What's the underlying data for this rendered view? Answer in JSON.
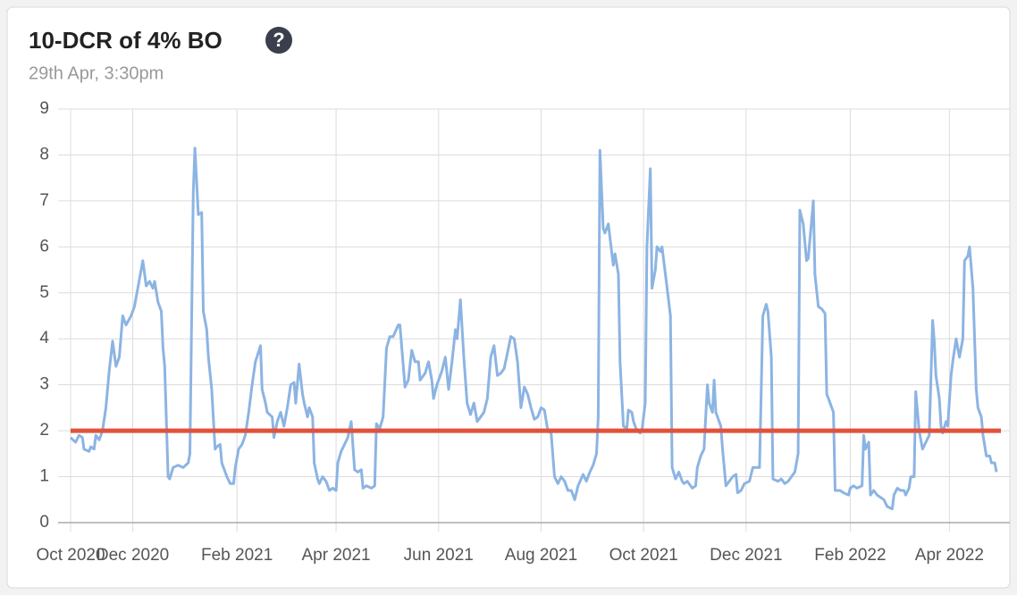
{
  "chart_data": {
    "type": "line",
    "title": "10-DCR of 4% BO",
    "help_icon": "?",
    "subtitle": "29th Apr, 3:30pm",
    "color": "#8cb4e3",
    "reference_line": {
      "value": 2,
      "color": "#e0523a"
    },
    "xlim": [
      24,
      575
    ],
    "xticks": [
      {
        "value": 24,
        "label": "Oct 2020"
      },
      {
        "value": 61,
        "label": "Dec 2020"
      },
      {
        "value": 123,
        "label": "Feb 2021"
      },
      {
        "value": 182,
        "label": "Apr 2021"
      },
      {
        "value": 243,
        "label": "Jun 2021"
      },
      {
        "value": 304,
        "label": "Aug 2021"
      },
      {
        "value": 365,
        "label": "Oct 2021"
      },
      {
        "value": 426,
        "label": "Dec 2021"
      },
      {
        "value": 488,
        "label": "Feb 2022"
      },
      {
        "value": 547,
        "label": "Apr 2022"
      }
    ],
    "ylim": [
      0,
      9
    ],
    "yticks": [
      0,
      1,
      2,
      3,
      4,
      5,
      6,
      7,
      8,
      9
    ],
    "grid": true,
    "x": [
      24,
      27,
      29,
      31,
      32,
      35,
      36,
      38,
      39,
      41,
      43,
      45,
      47,
      49,
      51,
      53,
      55,
      57,
      60,
      62,
      64,
      67,
      69,
      71,
      73,
      74,
      76,
      78,
      79,
      80,
      82,
      83,
      85,
      88,
      91,
      94,
      95,
      97,
      98,
      100,
      102,
      103,
      105,
      106,
      108,
      110,
      111,
      113,
      114,
      117,
      119,
      121,
      122,
      124,
      126,
      128,
      130,
      132,
      134,
      137,
      138,
      140,
      141,
      144,
      145,
      147,
      149,
      151,
      153,
      155,
      157,
      158,
      160,
      162,
      163,
      165,
      166,
      168,
      169,
      171,
      172,
      174,
      176,
      178,
      180,
      182,
      183,
      185,
      187,
      189,
      191,
      193,
      195,
      197,
      198,
      200,
      203,
      205,
      206,
      208,
      210,
      212,
      214,
      216,
      219,
      220,
      222,
      223,
      225,
      227,
      229,
      231,
      232,
      235,
      237,
      239,
      240,
      242,
      245,
      247,
      249,
      251,
      253,
      254,
      256,
      258,
      260,
      262,
      264,
      266,
      268,
      270,
      272,
      274,
      276,
      278,
      280,
      282,
      284,
      286,
      288,
      290,
      292,
      294,
      296,
      298,
      300,
      302,
      304,
      306,
      308,
      310,
      312,
      314,
      316,
      318,
      320,
      322,
      324,
      326,
      329,
      331,
      333,
      335,
      337,
      338,
      339,
      341,
      342,
      344,
      346,
      347,
      348,
      350,
      351,
      353,
      355,
      356,
      358,
      359,
      361,
      363,
      364,
      366,
      367,
      369,
      370,
      372,
      373,
      375,
      376,
      378,
      379,
      381,
      382,
      384,
      386,
      388,
      389,
      391,
      394,
      396,
      397,
      399,
      401,
      403,
      404,
      406,
      407,
      408,
      411,
      412,
      414,
      416,
      418,
      420,
      421,
      423,
      425,
      428,
      430,
      432,
      434,
      436,
      438,
      439,
      441,
      442,
      445,
      447,
      449,
      451,
      453,
      455,
      457,
      458,
      460,
      462,
      463,
      466,
      467,
      469,
      471,
      473,
      474,
      476,
      478,
      479,
      481,
      482,
      484,
      487,
      488,
      490,
      492,
      495,
      496,
      497,
      499,
      500,
      502,
      504,
      506,
      508,
      510,
      513,
      514,
      516,
      518,
      520,
      521,
      523,
      524,
      526,
      527,
      529,
      531,
      533,
      535,
      537,
      538,
      539,
      541,
      542,
      543,
      545,
      546,
      548,
      549,
      551,
      553,
      555,
      556,
      558,
      559,
      561,
      563,
      564,
      566,
      567,
      569,
      571,
      572,
      574,
      575
    ],
    "values": [
      1.85,
      1.75,
      1.9,
      1.85,
      1.6,
      1.55,
      1.65,
      1.6,
      1.9,
      1.8,
      2.0,
      2.5,
      3.3,
      3.95,
      3.4,
      3.6,
      4.5,
      4.3,
      4.5,
      4.7,
      5.1,
      5.7,
      5.15,
      5.25,
      5.1,
      5.25,
      4.8,
      4.6,
      3.8,
      3.4,
      1.0,
      0.95,
      1.2,
      1.25,
      1.2,
      1.3,
      1.5,
      7.2,
      8.15,
      6.7,
      6.75,
      4.6,
      4.2,
      3.6,
      2.9,
      1.6,
      1.65,
      1.7,
      1.3,
      1.0,
      0.85,
      0.85,
      1.2,
      1.6,
      1.7,
      1.9,
      2.4,
      3.0,
      3.5,
      3.85,
      2.9,
      2.6,
      2.4,
      2.3,
      1.85,
      2.2,
      2.4,
      2.1,
      2.5,
      3.0,
      3.05,
      2.6,
      3.45,
      2.8,
      2.6,
      2.3,
      2.5,
      2.3,
      1.3,
      0.95,
      0.85,
      1.0,
      0.9,
      0.7,
      0.75,
      0.7,
      1.3,
      1.55,
      1.7,
      1.85,
      2.2,
      1.15,
      1.1,
      1.15,
      0.75,
      0.8,
      0.75,
      0.8,
      2.15,
      2.05,
      2.3,
      3.8,
      4.05,
      4.05,
      4.3,
      4.3,
      3.4,
      2.95,
      3.1,
      3.75,
      3.5,
      3.5,
      3.1,
      3.25,
      3.5,
      3.1,
      2.7,
      3.0,
      3.3,
      3.6,
      2.9,
      3.5,
      4.2,
      4.0,
      4.85,
      3.6,
      2.6,
      2.35,
      2.6,
      2.2,
      2.3,
      2.4,
      2.7,
      3.6,
      3.85,
      3.2,
      3.25,
      3.35,
      3.7,
      4.05,
      4.0,
      3.5,
      2.5,
      2.95,
      2.8,
      2.5,
      2.25,
      2.3,
      2.5,
      2.45,
      2.0,
      1.95,
      1.0,
      0.85,
      1.0,
      0.9,
      0.7,
      0.7,
      0.5,
      0.8,
      1.05,
      0.9,
      1.1,
      1.25,
      1.5,
      2.3,
      8.1,
      6.4,
      6.3,
      6.5,
      5.9,
      5.6,
      5.85,
      5.4,
      3.5,
      2.1,
      2.05,
      2.45,
      2.4,
      2.2,
      2.0,
      1.95,
      2.0,
      2.6,
      6.0,
      7.7,
      5.1,
      5.5,
      6.0,
      5.9,
      6.0,
      5.4,
      5.1,
      4.5,
      1.2,
      0.95,
      1.1,
      0.9,
      0.85,
      0.9,
      0.75,
      0.8,
      1.2,
      1.45,
      1.6,
      3.0,
      2.6,
      2.4,
      3.1,
      2.4,
      2.1,
      1.6,
      0.8,
      0.9,
      1.0,
      1.05,
      0.65,
      0.7,
      0.85,
      0.9,
      1.2,
      1.2,
      1.2,
      4.5,
      4.75,
      4.6,
      3.6,
      0.95,
      0.9,
      0.95,
      0.85,
      0.9,
      1.0,
      1.1,
      1.5,
      6.8,
      6.5,
      5.7,
      5.75,
      7.0,
      5.4,
      4.7,
      4.65,
      4.55,
      2.8,
      2.6,
      2.4,
      0.7,
      0.7,
      0.7,
      0.65,
      0.6,
      0.75,
      0.8,
      0.75,
      0.8,
      1.9,
      1.6,
      1.75,
      0.6,
      0.7,
      0.6,
      0.55,
      0.5,
      0.35,
      0.3,
      0.6,
      0.75,
      0.7,
      0.7,
      0.6,
      0.75,
      1.0,
      1.0,
      2.85,
      2.0,
      1.6,
      1.75,
      1.9,
      4.4,
      3.95,
      3.2,
      2.7,
      2.1,
      1.95,
      2.2,
      2.1,
      3.2,
      3.5,
      4.0,
      3.6,
      4.0,
      5.7,
      5.8,
      6.0,
      5.1,
      2.9,
      2.5,
      2.3,
      1.9,
      1.45,
      1.45,
      1.3,
      1.3,
      1.1
    ]
  }
}
